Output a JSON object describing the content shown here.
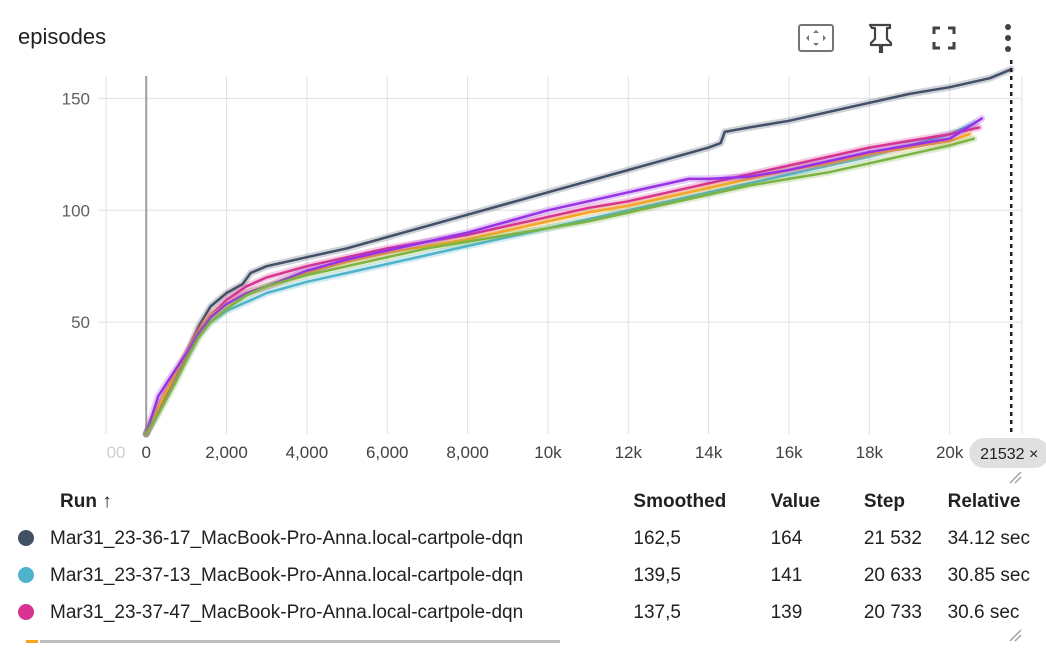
{
  "title": "episodes",
  "toolbar": {
    "icons": [
      "fit-domain-icon",
      "pin-icon",
      "fullscreen-icon",
      "more-vert-icon"
    ]
  },
  "chart_data": {
    "type": "line",
    "title": "episodes",
    "xlabel": "",
    "ylabel": "",
    "xlim": [
      -1200,
      21800
    ],
    "ylim": [
      0,
      160
    ],
    "x_ticks": [
      0,
      2000,
      4000,
      6000,
      8000,
      10000,
      12000,
      14000,
      16000,
      18000,
      20000
    ],
    "x_tick_labels": [
      "0",
      "2,000",
      "4,000",
      "6,000",
      "8,000",
      "10k",
      "12k",
      "14k",
      "16k",
      "18k",
      "20k"
    ],
    "x_faded_tick_labels": [
      "00",
      "2"
    ],
    "y_ticks": [
      50,
      100,
      150
    ],
    "y_tick_labels": [
      "50",
      "100",
      "150"
    ],
    "grid": true,
    "hover_step": 21532,
    "hover_label": "21532 ×",
    "series": [
      {
        "color": "#425066",
        "x": [
          0,
          300,
          700,
          1000,
          1300,
          1600,
          2000,
          2400,
          2600,
          3000,
          3500,
          4000,
          5000,
          6000,
          7000,
          8000,
          9000,
          10000,
          11000,
          12000,
          13000,
          14000,
          14300,
          14400,
          15000,
          16000,
          17000,
          18000,
          19000,
          20000,
          21000,
          21532
        ],
        "y": [
          0,
          12,
          25,
          35,
          48,
          57,
          63,
          67,
          72,
          75,
          77,
          79,
          83,
          88,
          93,
          98,
          103,
          108,
          113,
          118,
          123,
          128,
          130,
          135,
          137,
          140,
          144,
          148,
          152,
          155,
          159,
          163
        ]
      },
      {
        "color": "#4fb3cc",
        "x": [
          0,
          300,
          700,
          1000,
          1300,
          1600,
          2000,
          2500,
          3000,
          4000,
          5000,
          6000,
          7000,
          8000,
          9000,
          10000,
          11000,
          12000,
          13000,
          14000,
          15000,
          16000,
          17000,
          18000,
          19000,
          20000,
          20633
        ],
        "y": [
          0,
          10,
          24,
          34,
          44,
          50,
          55,
          59,
          63,
          68,
          72,
          76,
          80,
          84,
          88,
          92,
          96,
          100,
          104,
          108,
          112,
          116,
          120,
          124,
          129,
          134,
          139
        ]
      },
      {
        "color": "#d6348f",
        "x": [
          0,
          300,
          700,
          1000,
          1300,
          1600,
          2000,
          2500,
          3000,
          4000,
          5000,
          6000,
          7000,
          8000,
          9000,
          10000,
          11000,
          12000,
          13000,
          14000,
          15000,
          16000,
          17000,
          18000,
          19000,
          20000,
          20733
        ],
        "y": [
          0,
          11,
          25,
          35,
          46,
          53,
          60,
          66,
          70,
          75,
          79,
          83,
          86,
          89,
          93,
          97,
          101,
          104,
          108,
          112,
          116,
          120,
          124,
          128,
          131,
          134,
          137
        ]
      },
      {
        "color": "#f5a623",
        "x": [
          0,
          300,
          700,
          1000,
          1300,
          1600,
          2000,
          2500,
          3000,
          4000,
          5000,
          6000,
          7000,
          8000,
          9000,
          10000,
          11000,
          12000,
          13000,
          14000,
          15000,
          16000,
          17000,
          18000,
          19000,
          20000,
          20493
        ],
        "y": [
          0,
          12,
          26,
          36,
          46,
          53,
          58,
          63,
          66,
          72,
          77,
          81,
          84,
          87,
          91,
          95,
          99,
          102,
          106,
          110,
          114,
          118,
          121,
          125,
          128,
          131,
          134
        ]
      },
      {
        "color": "#9932e6",
        "x": [
          0,
          300,
          700,
          1000,
          1300,
          1600,
          2000,
          2500,
          3000,
          4000,
          5000,
          6000,
          7000,
          8000,
          9000,
          10000,
          11000,
          12000,
          13000,
          13500,
          14000,
          15000,
          16000,
          17000,
          18000,
          19000,
          20000,
          20800
        ],
        "y": [
          0,
          17,
          28,
          36,
          45,
          52,
          58,
          63,
          66,
          73,
          78,
          82,
          86,
          90,
          95,
          100,
          104,
          108,
          112,
          114,
          114,
          115,
          118,
          122,
          126,
          129,
          132,
          141
        ]
      },
      {
        "color": "#7cb342",
        "x": [
          0,
          300,
          700,
          1000,
          1300,
          1600,
          2000,
          2500,
          3000,
          4000,
          5000,
          6000,
          7000,
          8000,
          9000,
          10000,
          11000,
          12000,
          13000,
          14000,
          15000,
          16000,
          17000,
          18000,
          19000,
          20000,
          20600
        ],
        "y": [
          0,
          9,
          22,
          33,
          43,
          50,
          56,
          62,
          66,
          71,
          75,
          79,
          83,
          86,
          89,
          92,
          95,
          99,
          103,
          107,
          111,
          114,
          117,
          121,
          125,
          129,
          132
        ]
      }
    ]
  },
  "table": {
    "headers": {
      "run": "Run ↑",
      "smoothed": "Smoothed",
      "value": "Value",
      "step": "Step",
      "relative": "Relative"
    },
    "rows": [
      {
        "color": "#425066",
        "run": "Mar31_23-36-17_MacBook-Pro-Anna.local-cartpole-dqn",
        "smoothed": "162,5",
        "value": "164",
        "step": "21 532",
        "relative": "34.12 sec"
      },
      {
        "color": "#4fb3cc",
        "run": "Mar31_23-37-13_MacBook-Pro-Anna.local-cartpole-dqn",
        "smoothed": "139,5",
        "value": "141",
        "step": "20 633",
        "relative": "30.85 sec"
      },
      {
        "color": "#d6348f",
        "run": "Mar31_23-37-47_MacBook-Pro-Anna.local-cartpole-dqn",
        "smoothed": "137,5",
        "value": "139",
        "step": "20 733",
        "relative": "30.6 sec"
      }
    ]
  }
}
